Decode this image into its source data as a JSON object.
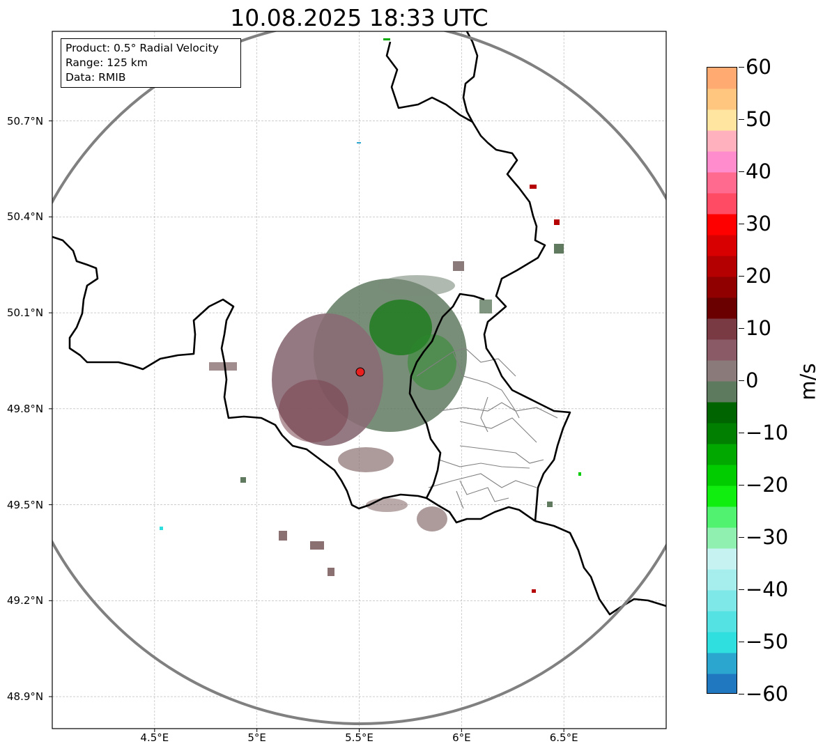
{
  "title": "10.08.2025 18:33 UTC",
  "info": {
    "product": "Product: 0.5° Radial Velocity",
    "range": "Range: 125 km",
    "source": "Data: RMIB"
  },
  "map": {
    "lon_range": [
      4.0,
      7.0
    ],
    "lat_range": [
      48.8,
      50.98
    ],
    "lat_ticks": [
      {
        "value": 50.7,
        "label": "50.7°N"
      },
      {
        "value": 50.4,
        "label": "50.4°N"
      },
      {
        "value": 50.1,
        "label": "50.1°N"
      },
      {
        "value": 49.8,
        "label": "49.8°N"
      },
      {
        "value": 49.5,
        "label": "49.5°N"
      },
      {
        "value": 49.2,
        "label": "49.2°N"
      },
      {
        "value": 48.9,
        "label": "48.9°N"
      }
    ],
    "lon_ticks": [
      {
        "value": 4.5,
        "label": "4.5°E"
      },
      {
        "value": 5.0,
        "label": "5°E"
      },
      {
        "value": 5.5,
        "label": "5.5°E"
      },
      {
        "value": 6.0,
        "label": "6°E"
      },
      {
        "value": 6.5,
        "label": "6.5°E"
      }
    ],
    "radar_site": {
      "lon": 5.505,
      "lat": 49.915,
      "color": "#e8201f"
    },
    "range_ring_color": "#808080",
    "grid": true
  },
  "colorbar": {
    "unit": "m/s",
    "min": -60,
    "max": 60,
    "ticks": [
      {
        "value": 60,
        "label": "60"
      },
      {
        "value": 50,
        "label": "50"
      },
      {
        "value": 40,
        "label": "40"
      },
      {
        "value": 30,
        "label": "30"
      },
      {
        "value": 20,
        "label": "20"
      },
      {
        "value": 10,
        "label": "10"
      },
      {
        "value": 0,
        "label": "0"
      },
      {
        "value": -10,
        "label": "−10"
      },
      {
        "value": -20,
        "label": "−20"
      },
      {
        "value": -30,
        "label": "−30"
      },
      {
        "value": -40,
        "label": "−40"
      },
      {
        "value": -50,
        "label": "−50"
      },
      {
        "value": -60,
        "label": "−60"
      }
    ],
    "stops": [
      {
        "value": -60,
        "color": "#1f78c0"
      },
      {
        "value": -56,
        "color": "#2aa6cf"
      },
      {
        "value": -52,
        "color": "#2fdede"
      },
      {
        "value": -48,
        "color": "#55e2e2"
      },
      {
        "value": -44,
        "color": "#7ee8e8"
      },
      {
        "value": -40,
        "color": "#a6eeee"
      },
      {
        "value": -36,
        "color": "#c6f2f2"
      },
      {
        "value": -32,
        "color": "#90f0b0"
      },
      {
        "value": -28,
        "color": "#50f270"
      },
      {
        "value": -24,
        "color": "#10ee10"
      },
      {
        "value": -20,
        "color": "#00cc00"
      },
      {
        "value": -16,
        "color": "#00a800"
      },
      {
        "value": -12,
        "color": "#007f00"
      },
      {
        "value": -8,
        "color": "#006400"
      },
      {
        "value": -4,
        "color": "#5e7a5e"
      },
      {
        "value": 0,
        "color": "#8a7a7a"
      },
      {
        "value": 4,
        "color": "#8a5a66"
      },
      {
        "value": 8,
        "color": "#7a3a44"
      },
      {
        "value": 12,
        "color": "#6a0000"
      },
      {
        "value": 16,
        "color": "#900000"
      },
      {
        "value": 20,
        "color": "#b40000"
      },
      {
        "value": 24,
        "color": "#d80000"
      },
      {
        "value": 28,
        "color": "#ff0000"
      },
      {
        "value": 32,
        "color": "#ff4b64"
      },
      {
        "value": 36,
        "color": "#ff6a8e"
      },
      {
        "value": 40,
        "color": "#ff8ccc"
      },
      {
        "value": 44,
        "color": "#ffb2be"
      },
      {
        "value": 48,
        "color": "#ffe5a0"
      },
      {
        "value": 52,
        "color": "#ffc680"
      },
      {
        "value": 56,
        "color": "#ffaa70"
      },
      {
        "value": 60,
        "color": "#ff985a"
      }
    ]
  },
  "colors": {
    "border": "#000000",
    "region_border": "#808080",
    "grid": "#b0b0b0"
  }
}
